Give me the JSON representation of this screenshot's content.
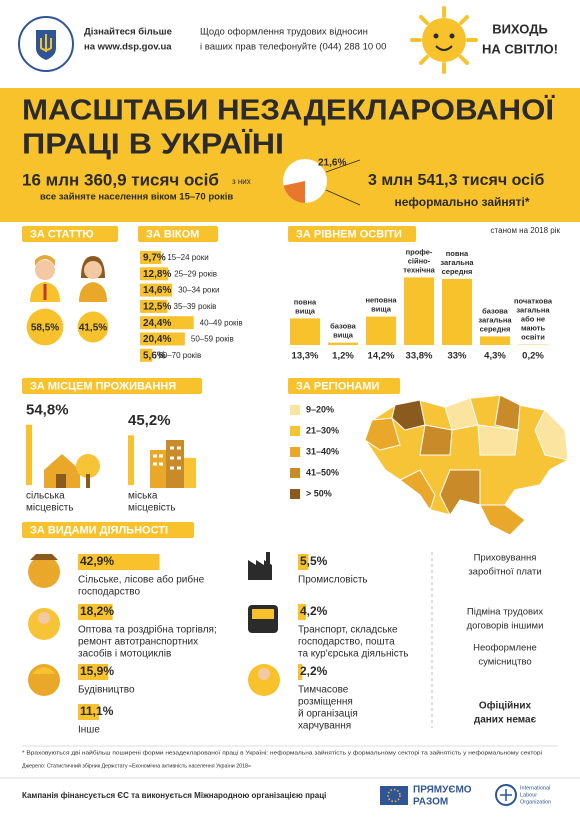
{
  "header": {
    "info_lines": [
      "Дізнайтеся більше",
      "на www.dsp.gov.ua"
    ],
    "contact_lines": [
      "Щодо оформлення трудових відносин",
      "і ваших прав телефонуйте (044) 288 10 00"
    ],
    "slogan_lines": [
      "ВИХОДЬ",
      "НА СВІТЛО!"
    ]
  },
  "banner": {
    "title_lines": [
      "МАСШТАБИ НЕЗАДЕКЛАРОВАНОЇ",
      "ПРАЦІ В УКРАЇНІ"
    ],
    "total": "16 млн 360,9 тисяч осіб",
    "total_note": "все зайняте населення віком 15–70 років",
    "of_them": "з них",
    "share": {
      "value": 21.6,
      "label": "21,6%"
    },
    "informal": "3 млн 541,3 тисяч осіб",
    "informal_note": "неформально зайняті*"
  },
  "as_of": "станом на 2018 рік",
  "by_sex": {
    "title": "ЗА СТАТТЮ",
    "male": {
      "value": 58.5,
      "label": "58,5%"
    },
    "female": {
      "value": 41.5,
      "label": "41,5%"
    }
  },
  "by_age": {
    "title": "ЗА ВІКОМ",
    "rows": [
      {
        "share": {
          "value": 9.7,
          "label": "9,7%"
        },
        "age": "15–24 роки"
      },
      {
        "share": {
          "value": 12.8,
          "label": "12,8%"
        },
        "age": "25–29 років"
      },
      {
        "share": {
          "value": 14.6,
          "label": "14,6%"
        },
        "age": "30–34 роки"
      },
      {
        "share": {
          "value": 12.5,
          "label": "12,5%"
        },
        "age": "35–39 років"
      },
      {
        "share": {
          "value": 24.4,
          "label": "24,4%"
        },
        "age": "40–49 років"
      },
      {
        "share": {
          "value": 20.4,
          "label": "20,4%"
        },
        "age": "50–59 років"
      },
      {
        "share": {
          "value": 5.6,
          "label": "5,6%"
        },
        "age": "60–70 років"
      }
    ]
  },
  "by_education": {
    "title": "ЗА РІВНЕМ ОСВІТИ",
    "columns": [
      {
        "label_lines": [
          "повна",
          "вища"
        ],
        "share": {
          "value": 13.3,
          "label": "13,3%"
        }
      },
      {
        "label_lines": [
          "базова",
          "вища"
        ],
        "share": {
          "value": 1.2,
          "label": "1,2%"
        }
      },
      {
        "label_lines": [
          "неповна",
          "вища"
        ],
        "share": {
          "value": 14.2,
          "label": "14,2%"
        }
      },
      {
        "label_lines": [
          "профе-",
          "сійно-",
          "технічна"
        ],
        "share": {
          "value": 33.8,
          "label": "33,8%"
        }
      },
      {
        "label_lines": [
          "повна",
          "загальна",
          "середня"
        ],
        "share": {
          "value": 33,
          "label": "33%"
        }
      },
      {
        "label_lines": [
          "базова",
          "загальна",
          "середня"
        ],
        "share": {
          "value": 4.3,
          "label": "4,3%"
        }
      },
      {
        "label_lines": [
          "початкова",
          "загальна",
          "або не",
          "мають",
          "освіти"
        ],
        "share": {
          "value": 0.2,
          "label": "0,2%"
        }
      }
    ]
  },
  "by_residence": {
    "title": "ЗА МІСЦЕМ ПРОЖИВАННЯ",
    "rural": {
      "share": {
        "value": 54.8,
        "label": "54,8%"
      },
      "label_lines": [
        "сільська",
        "місцевість"
      ]
    },
    "urban": {
      "share": {
        "value": 45.2,
        "label": "45,2%"
      },
      "label_lines": [
        "міська",
        "місцевість"
      ]
    }
  },
  "by_region": {
    "title": "ЗА РЕГІОНАМИ",
    "legend": [
      {
        "label": "9–20%",
        "color": "#fbe3a0"
      },
      {
        "label": "21–30%",
        "color": "#f7c437"
      },
      {
        "label": "31–40%",
        "color": "#e9a82a"
      },
      {
        "label": "41–50%",
        "color": "#c98a2a"
      },
      {
        "label": "> 50%",
        "color": "#8b5a1e"
      }
    ]
  },
  "by_activity": {
    "title": "ЗА ВИДАМИ ДІЯЛЬНОСТІ",
    "items": [
      {
        "share": {
          "value": 42.9,
          "label": "42,9%"
        },
        "label_lines": [
          "Сільське, лісове або рибне",
          "господарство"
        ]
      },
      {
        "share": {
          "value": 18.2,
          "label": "18,2%"
        },
        "label_lines": [
          "Оптова та роздрібна торгівля;",
          "ремонт автотранспортних",
          "засобів і мотоциклів"
        ]
      },
      {
        "share": {
          "value": 15.9,
          "label": "15,9%"
        },
        "label_lines": [
          "Будівництво"
        ]
      },
      {
        "share": {
          "value": 11.1,
          "label": "11,1%"
        },
        "label_lines": [
          "Інше"
        ]
      },
      {
        "share": {
          "value": 5.5,
          "label": "5,5%"
        },
        "label_lines": [
          "Промисловість"
        ]
      },
      {
        "share": {
          "value": 4.2,
          "label": "4,2%"
        },
        "label_lines": [
          "Транспорт, складське",
          "господарство, пошта",
          "та кур'єрська діяльність"
        ]
      },
      {
        "share": {
          "value": 2.2,
          "label": "2,2%"
        },
        "label_lines": [
          "Тимчасове",
          "розміщення",
          "й організація",
          "харчування"
        ]
      }
    ]
  },
  "no_data": {
    "items": [
      [
        "Приховування",
        "заробітної плати"
      ],
      [
        "Підміна трудових",
        "договорів іншими"
      ],
      [
        "Неоформлене",
        "сумісництво"
      ]
    ],
    "note_lines": [
      "Офіційних",
      "даних немає"
    ]
  },
  "footnotes": [
    "* Враховуються дві найбільш поширені форми незадекларованої праці в Україні: неформальна зайнятість у формальному секторі та зайнятість у неформальному секторі",
    "Джерело: Статистичний збірник Держстату «Економічна активність населення України 2018»"
  ],
  "footer": {
    "text": "Кампанія фінансується ЄС та виконується Міжнародною організацією праці",
    "partner_lines": [
      "ПРЯМУЄМО",
      "РАЗОМ"
    ],
    "ilo_lines": [
      "International",
      "Labour",
      "Organization"
    ]
  }
}
